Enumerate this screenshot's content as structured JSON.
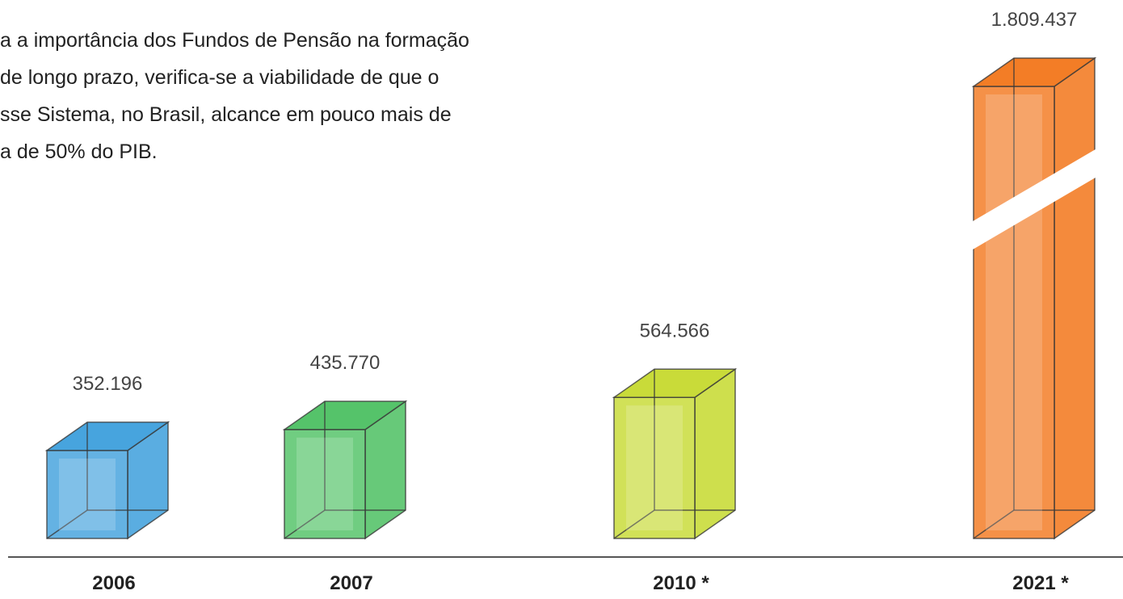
{
  "text": {
    "lines": [
      "a a importância dos Fundos de Pensão na  formação",
      "de longo prazo, verifica-se  a  viabilidade  de  que  o",
      "sse  Sistema, no  Brasil, alcance  em  pouco mais de",
      "a de 50% do PIB."
    ]
  },
  "chart_data": {
    "type": "bar3d",
    "categories": [
      "2006",
      "2007",
      "2010 *",
      "2021 *"
    ],
    "values": [
      352196,
      435770,
      564566,
      1809437
    ],
    "value_labels": [
      "352.196",
      "435.770",
      "564.566",
      "1.809.437"
    ],
    "colors": [
      "#3d9fdc",
      "#4cc062",
      "#c6d92e",
      "#f2761a"
    ]
  }
}
